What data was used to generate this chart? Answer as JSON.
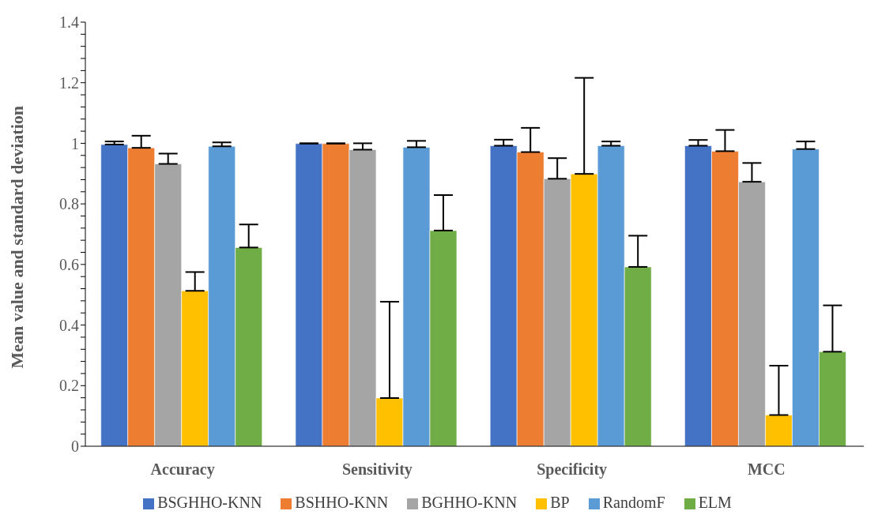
{
  "chart_data": {
    "type": "bar",
    "ylabel": "Mean value and standard deviation",
    "categories": [
      "Accuracy",
      "Sensitivity",
      "Specificity",
      "MCC"
    ],
    "series": [
      {
        "name": "BSGHHO-KNN",
        "color": "#4472c4",
        "values": [
          0.996,
          0.999,
          0.992,
          0.992
        ],
        "errors": [
          [
            0.996,
            1.006
          ],
          [
            0.999,
            1.0
          ],
          [
            0.992,
            1.012
          ],
          [
            0.992,
            1.011
          ]
        ]
      },
      {
        "name": "BSHHO-KNN",
        "color": "#ed7d31",
        "values": [
          0.985,
          0.999,
          0.971,
          0.974
        ],
        "errors": [
          [
            0.985,
            1.025
          ],
          [
            0.999,
            1.0
          ],
          [
            0.971,
            1.051
          ],
          [
            0.974,
            1.044
          ]
        ]
      },
      {
        "name": "BGHHO-KNN",
        "color": "#a5a5a5",
        "values": [
          0.932,
          0.979,
          0.883,
          0.873
        ],
        "errors": [
          [
            0.932,
            0.966
          ],
          [
            0.979,
            1.0
          ],
          [
            0.883,
            0.951
          ],
          [
            0.873,
            0.935
          ]
        ]
      },
      {
        "name": "BP",
        "color": "#ffc000",
        "values": [
          0.513,
          0.159,
          0.899,
          0.103
        ],
        "errors": [
          [
            0.513,
            0.575
          ],
          [
            0.159,
            0.477
          ],
          [
            0.899,
            1.216
          ],
          [
            0.103,
            0.266
          ]
        ]
      },
      {
        "name": "RandomF",
        "color": "#5b9bd5",
        "values": [
          0.99,
          0.987,
          0.992,
          0.981
        ],
        "errors": [
          [
            0.99,
            1.003
          ],
          [
            0.987,
            1.008
          ],
          [
            0.992,
            1.006
          ],
          [
            0.981,
            1.006
          ]
        ]
      },
      {
        "name": "ELM",
        "color": "#70ad47",
        "values": [
          0.656,
          0.712,
          0.592,
          0.312
        ],
        "errors": [
          [
            0.656,
            0.732
          ],
          [
            0.712,
            0.829
          ],
          [
            0.592,
            0.695
          ],
          [
            0.312,
            0.465
          ]
        ]
      }
    ],
    "ylim": [
      0,
      1.4
    ],
    "yticks": [
      0,
      {
        "value": 0.04,
        "label": null
      },
      {
        "value": 0.08,
        "label": null
      },
      {
        "value": 0.12,
        "label": null
      },
      {
        "value": 0.16,
        "label": null
      },
      0.2,
      {
        "value": 0.24,
        "label": null
      },
      {
        "value": 0.28,
        "label": null
      },
      {
        "value": 0.32,
        "label": null
      },
      {
        "value": 0.36,
        "label": null
      },
      0.4,
      {
        "value": 0.44,
        "label": null
      },
      {
        "value": 0.48,
        "label": null
      },
      {
        "value": 0.52,
        "label": null
      },
      {
        "value": 0.56,
        "label": null
      },
      0.6,
      {
        "value": 0.64,
        "label": null
      },
      {
        "value": 0.68,
        "label": null
      },
      {
        "value": 0.72,
        "label": null
      },
      {
        "value": 0.76,
        "label": null
      },
      0.8,
      {
        "value": 0.84,
        "label": null
      },
      {
        "value": 0.88,
        "label": null
      },
      {
        "value": 0.92,
        "label": null
      },
      {
        "value": 0.96,
        "label": null
      },
      1,
      {
        "value": 1.04,
        "label": null
      },
      {
        "value": 1.08,
        "label": null
      },
      {
        "value": 1.12,
        "label": null
      },
      {
        "value": 1.16,
        "label": null
      },
      1.2,
      {
        "value": 1.24,
        "label": null
      },
      {
        "value": 1.28,
        "label": null
      },
      {
        "value": 1.32,
        "label": null
      },
      {
        "value": 1.36,
        "label": null
      },
      1.4
    ],
    "grid": false,
    "legend": "bottom"
  }
}
